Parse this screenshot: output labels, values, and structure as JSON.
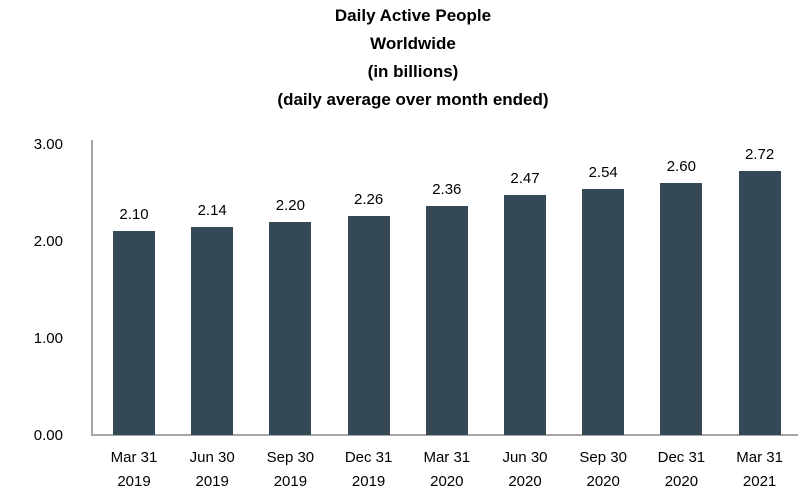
{
  "chart_data": {
    "type": "bar",
    "title_lines": [
      "Daily Active People",
      "Worldwide",
      "(in billions)",
      "(daily average over month ended)"
    ],
    "categories": [
      {
        "month": "Mar 31",
        "year": "2019"
      },
      {
        "month": "Jun 30",
        "year": "2019"
      },
      {
        "month": "Sep 30",
        "year": "2019"
      },
      {
        "month": "Dec 31",
        "year": "2019"
      },
      {
        "month": "Mar 31",
        "year": "2020"
      },
      {
        "month": "Jun 30",
        "year": "2020"
      },
      {
        "month": "Sep 30",
        "year": "2020"
      },
      {
        "month": "Dec 31",
        "year": "2020"
      },
      {
        "month": "Mar 31",
        "year": "2021"
      }
    ],
    "values": [
      2.1,
      2.14,
      2.2,
      2.26,
      2.36,
      2.47,
      2.54,
      2.6,
      2.72
    ],
    "value_labels": [
      "2.10",
      "2.14",
      "2.20",
      "2.26",
      "2.36",
      "2.47",
      "2.54",
      "2.60",
      "2.72"
    ],
    "yticks": [
      {
        "value": 3,
        "label": "3.00"
      },
      {
        "value": 2,
        "label": "2.00"
      },
      {
        "value": 1,
        "label": "1.00"
      },
      {
        "value": 0,
        "label": "0.00"
      }
    ],
    "ylim": [
      0,
      3
    ],
    "grid": false,
    "legend": "none",
    "bar_color": "#344955",
    "axis_color": "#a6a6a6",
    "text_color": "#000000"
  }
}
